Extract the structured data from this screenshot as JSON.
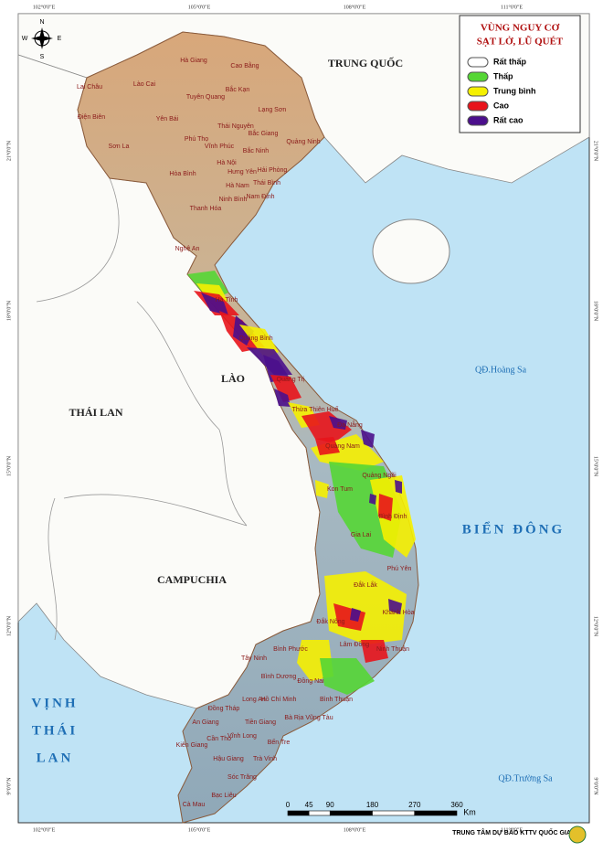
{
  "compass": {
    "north": "N",
    "south": "S",
    "east": "E",
    "west": "W"
  },
  "legend": {
    "title": [
      "VÙNG NGUY CƠ",
      "SẠT LỞ, LŨ QUÉT"
    ],
    "items": [
      {
        "label": "Rất thấp",
        "color": "#ffffff"
      },
      {
        "label": "Thấp",
        "color": "#55d635"
      },
      {
        "label": "Trung bình",
        "color": "#f5f000"
      },
      {
        "label": "Cao",
        "color": "#e8141b"
      },
      {
        "label": "Rất cao",
        "color": "#4b0f8c"
      }
    ]
  },
  "graticule": {
    "top": [
      "102°0'0\"E",
      "105°0'0\"E",
      "108°0'0\"E",
      "111°0'0\"E"
    ],
    "bottom": [
      "102°0'0\"E",
      "105°0'0\"E",
      "108°0'0\"E",
      "111°0'0\"E"
    ],
    "left": [
      "21°0'0\"N",
      "18°0'0\"N",
      "15°0'0\"N",
      "12°0'0\"N",
      "9°0'0\"N"
    ],
    "right": [
      "21°0'0\"N",
      "18°0'0\"N",
      "15°0'0\"N",
      "12°0'0\"N",
      "9°0'0\"N"
    ]
  },
  "regions": {
    "china": "TRUNG QUỐC",
    "laos": "LÀO",
    "thailand": "THÁI LAN",
    "cambodia": "CAMPUCHIA",
    "hoang_sa": "QĐ.Hoàng Sa",
    "east_sea": "BIỂN ĐÔNG",
    "gulf": [
      "VỊNH",
      "THÁI",
      "LAN"
    ],
    "truong_sa": "QĐ.Trường Sa"
  },
  "provinces": [
    "Hà Giang",
    "Cao Bằng",
    "Lào Cai",
    "Lai Châu",
    "Bắc Kạn",
    "Tuyên Quang",
    "Lạng Sơn",
    "Yên Bái",
    "Điện Biên",
    "Thái Nguyên",
    "Sơn La",
    "Phú Thọ",
    "Vĩnh Phúc",
    "Bắc Giang",
    "Quảng Ninh",
    "Hà Nội",
    "Bắc Ninh",
    "Hưng Yên",
    "Hải Phòng",
    "Hòa Bình",
    "Hà Nam",
    "Thái Bình",
    "Ninh Bình",
    "Nam Định",
    "Thanh Hóa",
    "Nghệ An",
    "Hà Tĩnh",
    "Quảng Bình",
    "Quảng Trị",
    "Thừa Thiên Huế",
    "Đà Nẵng",
    "Quảng Nam",
    "Quảng Ngãi",
    "Kon Tum",
    "Bình Định",
    "Gia Lai",
    "Phú Yên",
    "Đắk Lắk",
    "Khánh Hòa",
    "Đắk Nông",
    "Lâm Đồng",
    "Ninh Thuận",
    "Bình Phước",
    "Bình Thuận",
    "Tây Ninh",
    "Bình Dương",
    "Đồng Nai",
    "Hồ Chí Minh",
    "Bà Rịa Vũng Tàu",
    "Long An",
    "Đồng Tháp",
    "An Giang",
    "Tiền Giang",
    "Kiên Giang",
    "Cần Thơ",
    "Vĩnh Long",
    "Bến Tre",
    "Hậu Giang",
    "Trà Vinh",
    "Sóc Trăng",
    "Bạc Liêu",
    "Cà Mau"
  ],
  "scale": {
    "ticks": [
      0,
      45,
      90,
      180,
      270,
      360
    ],
    "unit": "Km"
  },
  "credit": "TRUNG TÂM DỰ BÁO KTTV QUỐC GIA"
}
